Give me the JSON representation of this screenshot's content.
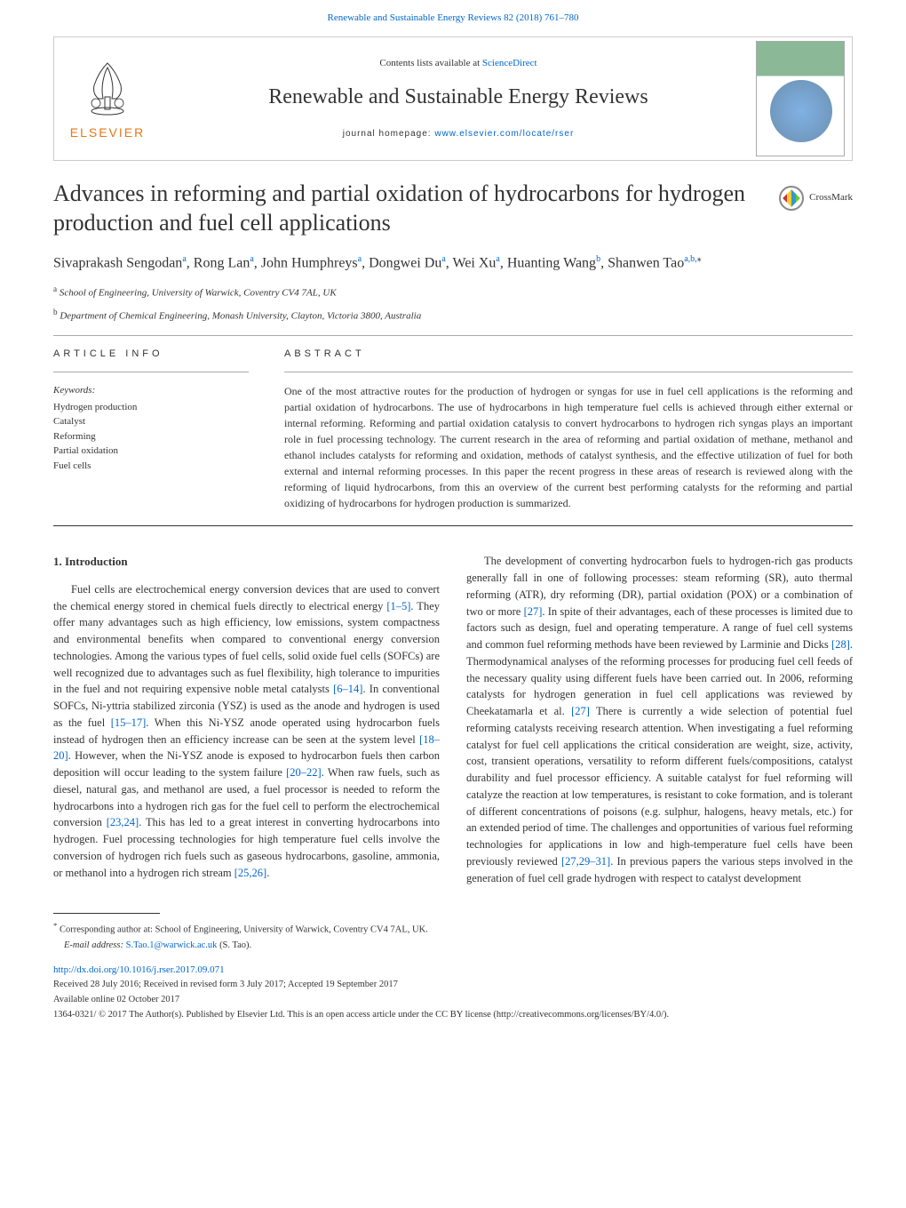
{
  "header": {
    "citation_link": "Renewable and Sustainable Energy Reviews 82 (2018) 761–780",
    "contents_prefix": "Contents lists available at ",
    "contents_link": "ScienceDirect",
    "journal_title": "Renewable and Sustainable Energy Reviews",
    "homepage_prefix": "journal homepage: ",
    "homepage_link": "www.elsevier.com/locate/rser",
    "publisher": "ELSEVIER"
  },
  "crossmark": "CrossMark",
  "title": "Advances in reforming and partial oxidation of hydrocarbons for hydrogen production and fuel cell applications",
  "authors_html": "Sivaprakash Sengodan<sup>a</sup>, Rong Lan<sup>a</sup>, John Humphreys<sup>a</sup>, Dongwei Du<sup>a</sup>, Wei Xu<sup>a</sup>, Huanting Wang<sup>b</sup>, Shanwen Tao<sup>a,b,</sup>",
  "affiliations": {
    "a": "School of Engineering, University of Warwick, Coventry CV4 7AL, UK",
    "b": "Department of Chemical Engineering, Monash University, Clayton, Victoria 3800, Australia"
  },
  "article_info": {
    "heading": "ARTICLE INFO",
    "keywords_label": "Keywords:",
    "keywords": [
      "Hydrogen production",
      "Catalyst",
      "Reforming",
      "Partial oxidation",
      "Fuel cells"
    ]
  },
  "abstract": {
    "heading": "ABSTRACT",
    "text": "One of the most attractive routes for the production of hydrogen or syngas for use in fuel cell applications is the reforming and partial oxidation of hydrocarbons. The use of hydrocarbons in high temperature fuel cells is achieved through either external or internal reforming. Reforming and partial oxidation catalysis to convert hydrocarbons to hydrogen rich syngas plays an important role in fuel processing technology. The current research in the area of reforming and partial oxidation of methane, methanol and ethanol includes catalysts for reforming and oxidation, methods of catalyst synthesis, and the effective utilization of fuel for both external and internal reforming processes. In this paper the recent progress in these areas of research is reviewed along with the reforming of liquid hydrocarbons, from this an overview of the current best performing catalysts for the reforming and partial oxidizing of hydrocarbons for hydrogen production is summarized."
  },
  "body": {
    "intro_heading": "1. Introduction",
    "col1_p1": "Fuel cells are electrochemical energy conversion devices that are used to convert the chemical energy stored in chemical fuels directly to electrical energy [1–5]. They offer many advantages such as high efficiency, low emissions, system compactness and environmental benefits when compared to conventional energy conversion technologies. Among the various types of fuel cells, solid oxide fuel cells (SOFCs) are well recognized due to advantages such as fuel flexibility, high tolerance to impurities in the fuel and not requiring expensive noble metal catalysts [6–14]. In conventional SOFCs, Ni-yttria stabilized zirconia (YSZ) is used as the anode and hydrogen is used as the fuel [15–17]. When this Ni-YSZ anode operated using hydrocarbon fuels instead of hydrogen then an efficiency increase can be seen at the system level [18–20]. However, when the Ni-YSZ anode is exposed to hydrocarbon fuels then carbon deposition will occur leading to the system failure [20–22]. When raw fuels, such as diesel, natural gas, and methanol are used, a fuel processor is needed to reform the hydrocarbons into a hydrogen rich gas for the fuel cell to perform the electrochemical conversion [23,24]. This has led to a great interest in converting hydrocarbons into hydrogen. Fuel processing technologies for high temperature fuel cells involve the conversion of hydrogen rich fuels such as gaseous hydrocarbons, gasoline, ammonia, or methanol into a hydrogen rich stream [25,26].",
    "col2_p1": "The development of converting hydrocarbon fuels to hydrogen-rich gas products generally fall in one of following processes: steam reforming (SR), auto thermal reforming (ATR), dry reforming (DR), partial oxidation (POX) or a combination of two or more [27]. In spite of their advantages, each of these processes is limited due to factors such as design, fuel and operating temperature. A range of fuel cell systems and common fuel reforming methods have been reviewed by Larminie and Dicks [28]. Thermodynamical analyses of the reforming processes for producing fuel cell feeds of the necessary quality using different fuels have been carried out. In 2006, reforming catalysts for hydrogen generation in fuel cell applications was reviewed by Cheekatamarla et al. [27] There is currently a wide selection of potential fuel reforming catalysts receiving research attention. When investigating a fuel reforming catalyst for fuel cell applications the critical consideration are weight, size, activity, cost, transient operations, versatility to reform different fuels/compositions, catalyst durability and fuel processor efficiency. A suitable catalyst for fuel reforming will catalyze the reaction at low temperatures, is resistant to coke formation, and is tolerant of different concentrations of poisons (e.g. sulphur, halogens, heavy metals, etc.) for an extended period of time. The challenges and opportunities of various fuel reforming technologies for applications in low and high-temperature fuel cells have been previously reviewed [27,29–31]. In previous papers the various steps involved in the generation of fuel cell grade hydrogen with respect to catalyst development"
  },
  "footer": {
    "corresponding": "Corresponding author at: School of Engineering, University of Warwick, Coventry CV4 7AL, UK.",
    "email_label": "E-mail address:",
    "email": "S.Tao.1@warwick.ac.uk",
    "email_name": "(S. Tao).",
    "doi": "http://dx.doi.org/10.1016/j.rser.2017.09.071",
    "received": "Received 28 July 2016; Received in revised form 3 July 2017; Accepted 19 September 2017",
    "available": "Available online 02 October 2017",
    "copyright": "1364-0321/ © 2017 The Author(s). Published by Elsevier Ltd. This is an open access article under the CC BY license (http://creativecommons.org/licenses/BY/4.0/)."
  },
  "colors": {
    "link": "#0066cc",
    "elsevier": "#e67817",
    "text": "#333333",
    "border": "#cccccc"
  }
}
